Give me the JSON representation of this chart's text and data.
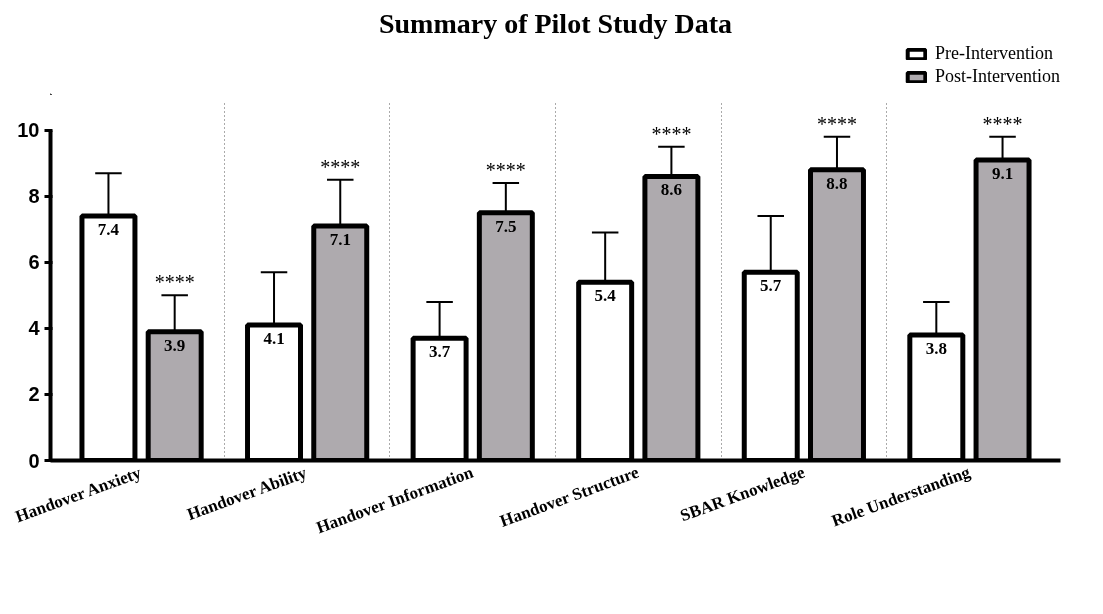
{
  "chart_data": {
    "type": "bar",
    "title": "Summary of Pilot Study Data",
    "categories": [
      "Handover Anxiety",
      "Handover Ability",
      "Handover Information",
      "Handover Structure",
      "SBAR Knowledge",
      "Role Understanding"
    ],
    "series": [
      {
        "name": "Pre-Intervention",
        "color": "#ffffff",
        "values": [
          7.4,
          4.1,
          3.7,
          5.4,
          5.7,
          3.8
        ],
        "errors": [
          [
            7.4,
            8.7
          ],
          [
            4.1,
            5.7
          ],
          [
            3.7,
            4.8
          ],
          [
            5.4,
            6.9
          ],
          [
            5.7,
            7.4
          ],
          [
            3.8,
            4.8
          ]
        ]
      },
      {
        "name": "Post-Intervention",
        "color": "#aeaaae",
        "values": [
          3.9,
          7.1,
          7.5,
          8.6,
          8.8,
          9.1
        ],
        "errors": [
          [
            3.9,
            5.0
          ],
          [
            7.1,
            8.5
          ],
          [
            7.5,
            8.4
          ],
          [
            8.6,
            9.5
          ],
          [
            8.8,
            9.8
          ],
          [
            9.1,
            9.8
          ]
        ]
      }
    ],
    "annotations": [
      "****",
      "****",
      "****",
      "****",
      "****",
      "****"
    ],
    "ylim": [
      0,
      10
    ],
    "yticks": [
      0,
      2,
      4,
      6,
      8,
      10
    ],
    "data_labels": true,
    "grid": "x",
    "legend": "top right"
  }
}
